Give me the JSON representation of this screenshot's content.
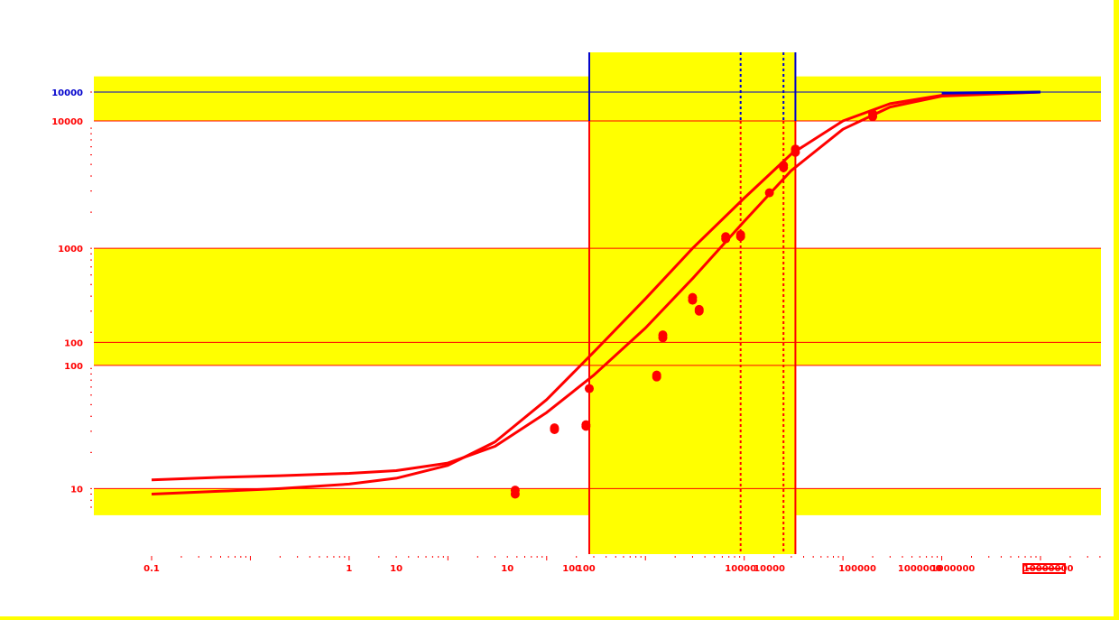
{
  "chart_data": {
    "type": "scatter",
    "title": "",
    "xlabel": "",
    "ylabel": "",
    "x_scale": "log",
    "y_scale": "log",
    "colors": {
      "background": "#ffffff",
      "band": "#ffff00",
      "curve": "#ff0000",
      "points": "#ff0000",
      "reference_blue": "#0000cc",
      "frame_right": "#ffff00"
    },
    "y_tick_labels": [
      {
        "text": "10000",
        "color": "#0000cc"
      },
      {
        "text": "10000",
        "color": "#ff0000"
      },
      {
        "text": "1000",
        "color": "#ff0000"
      },
      {
        "text": "100",
        "color": "#ff0000"
      },
      {
        "text": "100",
        "color": "#ff0000"
      },
      {
        "text": "10",
        "color": "#ff0000"
      }
    ],
    "x_tick_labels": [
      {
        "text": "0.1"
      },
      {
        "text": "1"
      },
      {
        "text": "10"
      },
      {
        "text": "10"
      },
      {
        "text": "100"
      },
      {
        "text": "100"
      },
      {
        "text": "10000"
      },
      {
        "text": "10000"
      },
      {
        "text": "100000"
      },
      {
        "text": "1000000"
      },
      {
        "text": "1000000"
      },
      {
        "text": "10000000"
      }
    ],
    "bands": [
      {
        "from_y": 11500,
        "to_y": 27000
      },
      {
        "from_y": 106,
        "to_y": 1000
      },
      {
        "from_y": 6,
        "to_y": 10
      },
      {
        "from_x": 270,
        "to_x": 33000
      }
    ],
    "vertical_lines": [
      {
        "x": 270,
        "style": "solid",
        "color": "#ff0000",
        "top_color": "#0000cc"
      },
      {
        "x": 9200,
        "style": "dotted",
        "color": "#ff0000",
        "top_color": "#0000cc"
      },
      {
        "x": 25000,
        "style": "dotted",
        "color": "#ff0000",
        "top_color": "#0000cc"
      },
      {
        "x": 33000,
        "style": "solid",
        "color": "#ff0000",
        "top_color": "#0000cc"
      }
    ],
    "horizontal_lines": [
      {
        "y": 20000,
        "color": "#0000cc"
      },
      {
        "y": 11500,
        "color": "#ff0000"
      },
      {
        "y": 1000,
        "color": "#ff0000"
      },
      {
        "y": 165,
        "color": "#ff0000"
      },
      {
        "y": 106,
        "color": "#ff0000"
      },
      {
        "y": 10,
        "color": "#ff0000"
      }
    ],
    "series": [
      {
        "type": "line",
        "points": [
          [
            0.01,
            11.8
          ],
          [
            0.05,
            12.4
          ],
          [
            0.2,
            12.8
          ],
          [
            1,
            13.4
          ],
          [
            3,
            14.1
          ],
          [
            10,
            16.3
          ],
          [
            30,
            22.5
          ],
          [
            100,
            43
          ],
          [
            300,
            88
          ],
          [
            1000,
            217
          ],
          [
            3000,
            560
          ],
          [
            10000,
            1680
          ],
          [
            30000,
            4450
          ],
          [
            100000,
            9800
          ],
          [
            300000,
            15000
          ],
          [
            1000000,
            18500
          ],
          [
            10000000,
            20000
          ]
        ]
      },
      {
        "type": "line",
        "points": [
          [
            0.01,
            9.0
          ],
          [
            0.05,
            9.5
          ],
          [
            0.2,
            10.0
          ],
          [
            1,
            10.9
          ],
          [
            3,
            12.2
          ],
          [
            10,
            15.6
          ],
          [
            30,
            24.5
          ],
          [
            100,
            55
          ],
          [
            300,
            137
          ],
          [
            1000,
            380
          ],
          [
            3000,
            1000
          ],
          [
            10000,
            2620
          ],
          [
            30000,
            6100
          ],
          [
            100000,
            11500
          ],
          [
            300000,
            16000
          ],
          [
            1000000,
            18800
          ],
          [
            10000000,
            20000
          ]
        ]
      },
      {
        "type": "scatter",
        "points": [
          [
            48,
            9.0
          ],
          [
            48,
            9.7
          ],
          [
            120,
            31
          ],
          [
            120,
            32
          ],
          [
            250,
            33
          ],
          [
            250,
            34
          ],
          [
            270,
            68
          ],
          [
            1300,
            85
          ],
          [
            1300,
            88
          ],
          [
            1500,
            180
          ],
          [
            1500,
            190
          ],
          [
            3000,
            370
          ],
          [
            3000,
            390
          ],
          [
            3500,
            300
          ],
          [
            3500,
            310
          ],
          [
            6500,
            1200
          ],
          [
            6500,
            1250
          ],
          [
            9200,
            1250
          ],
          [
            9200,
            1300
          ],
          [
            18000,
            2900
          ],
          [
            25000,
            4700
          ],
          [
            25000,
            4900
          ],
          [
            33000,
            6300
          ],
          [
            33000,
            6700
          ],
          [
            200000,
            12500
          ],
          [
            200000,
            13200
          ]
        ]
      }
    ]
  }
}
